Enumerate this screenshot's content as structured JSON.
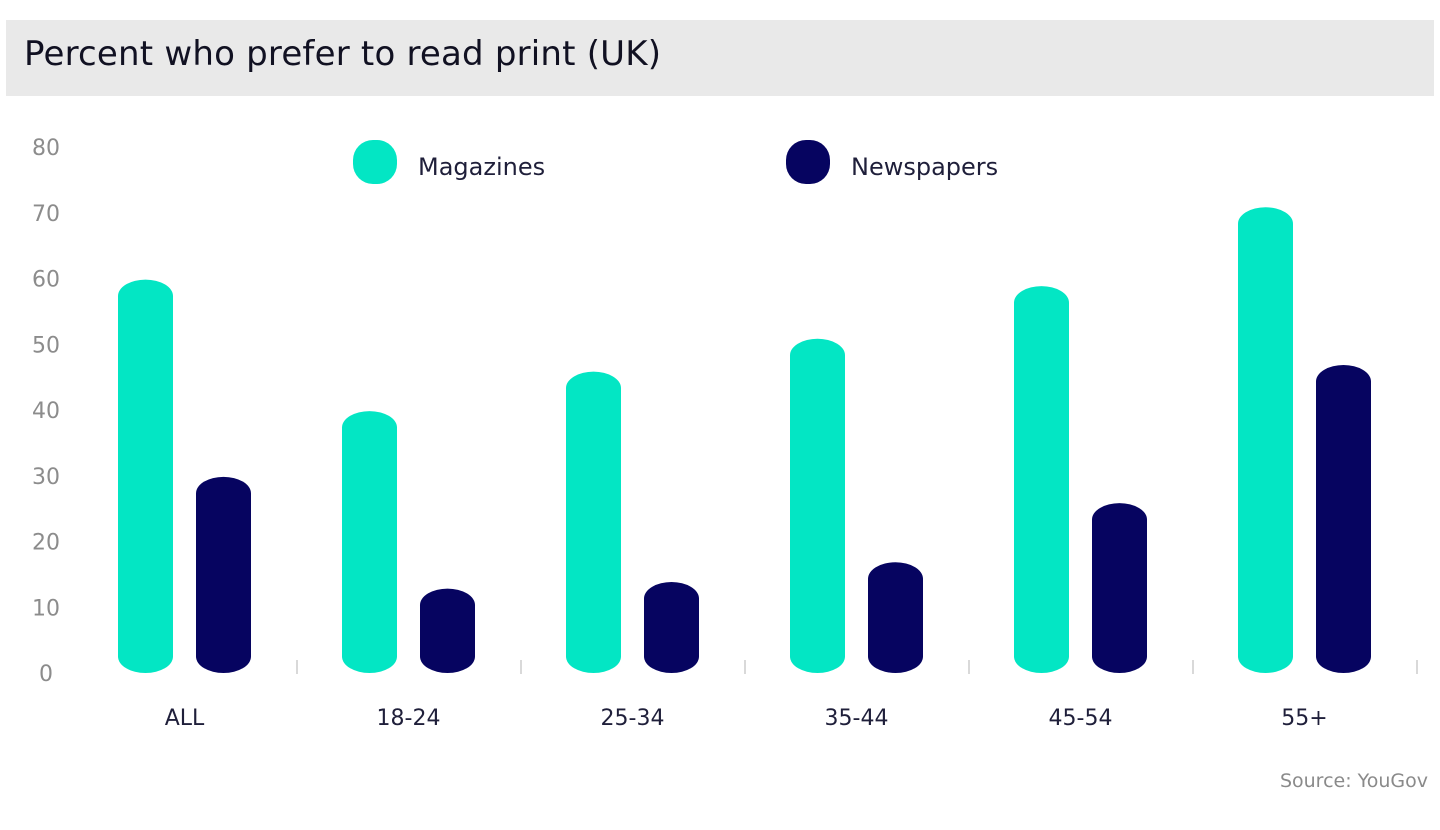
{
  "header": {
    "title": "Percent who prefer to read print (UK)"
  },
  "footer": {
    "source": "Source: YouGov"
  },
  "chart_data": {
    "type": "bar",
    "title": "Percent who prefer to read print (UK)",
    "xlabel": "",
    "ylabel": "",
    "ylim": [
      0,
      80
    ],
    "yticks": [
      0,
      10,
      20,
      30,
      40,
      50,
      60,
      70,
      80
    ],
    "grid": false,
    "legend": "top-center",
    "categories": [
      "ALL",
      "18-24",
      "25-34",
      "35-44",
      "45-54",
      "55+"
    ],
    "series": [
      {
        "name": "Magazines",
        "color": "#03e6c4",
        "values": [
          59,
          39,
          45,
          50,
          58,
          70
        ]
      },
      {
        "name": "Newspapers",
        "color": "#060460",
        "values": [
          29,
          12,
          13,
          16,
          25,
          46
        ]
      }
    ]
  }
}
